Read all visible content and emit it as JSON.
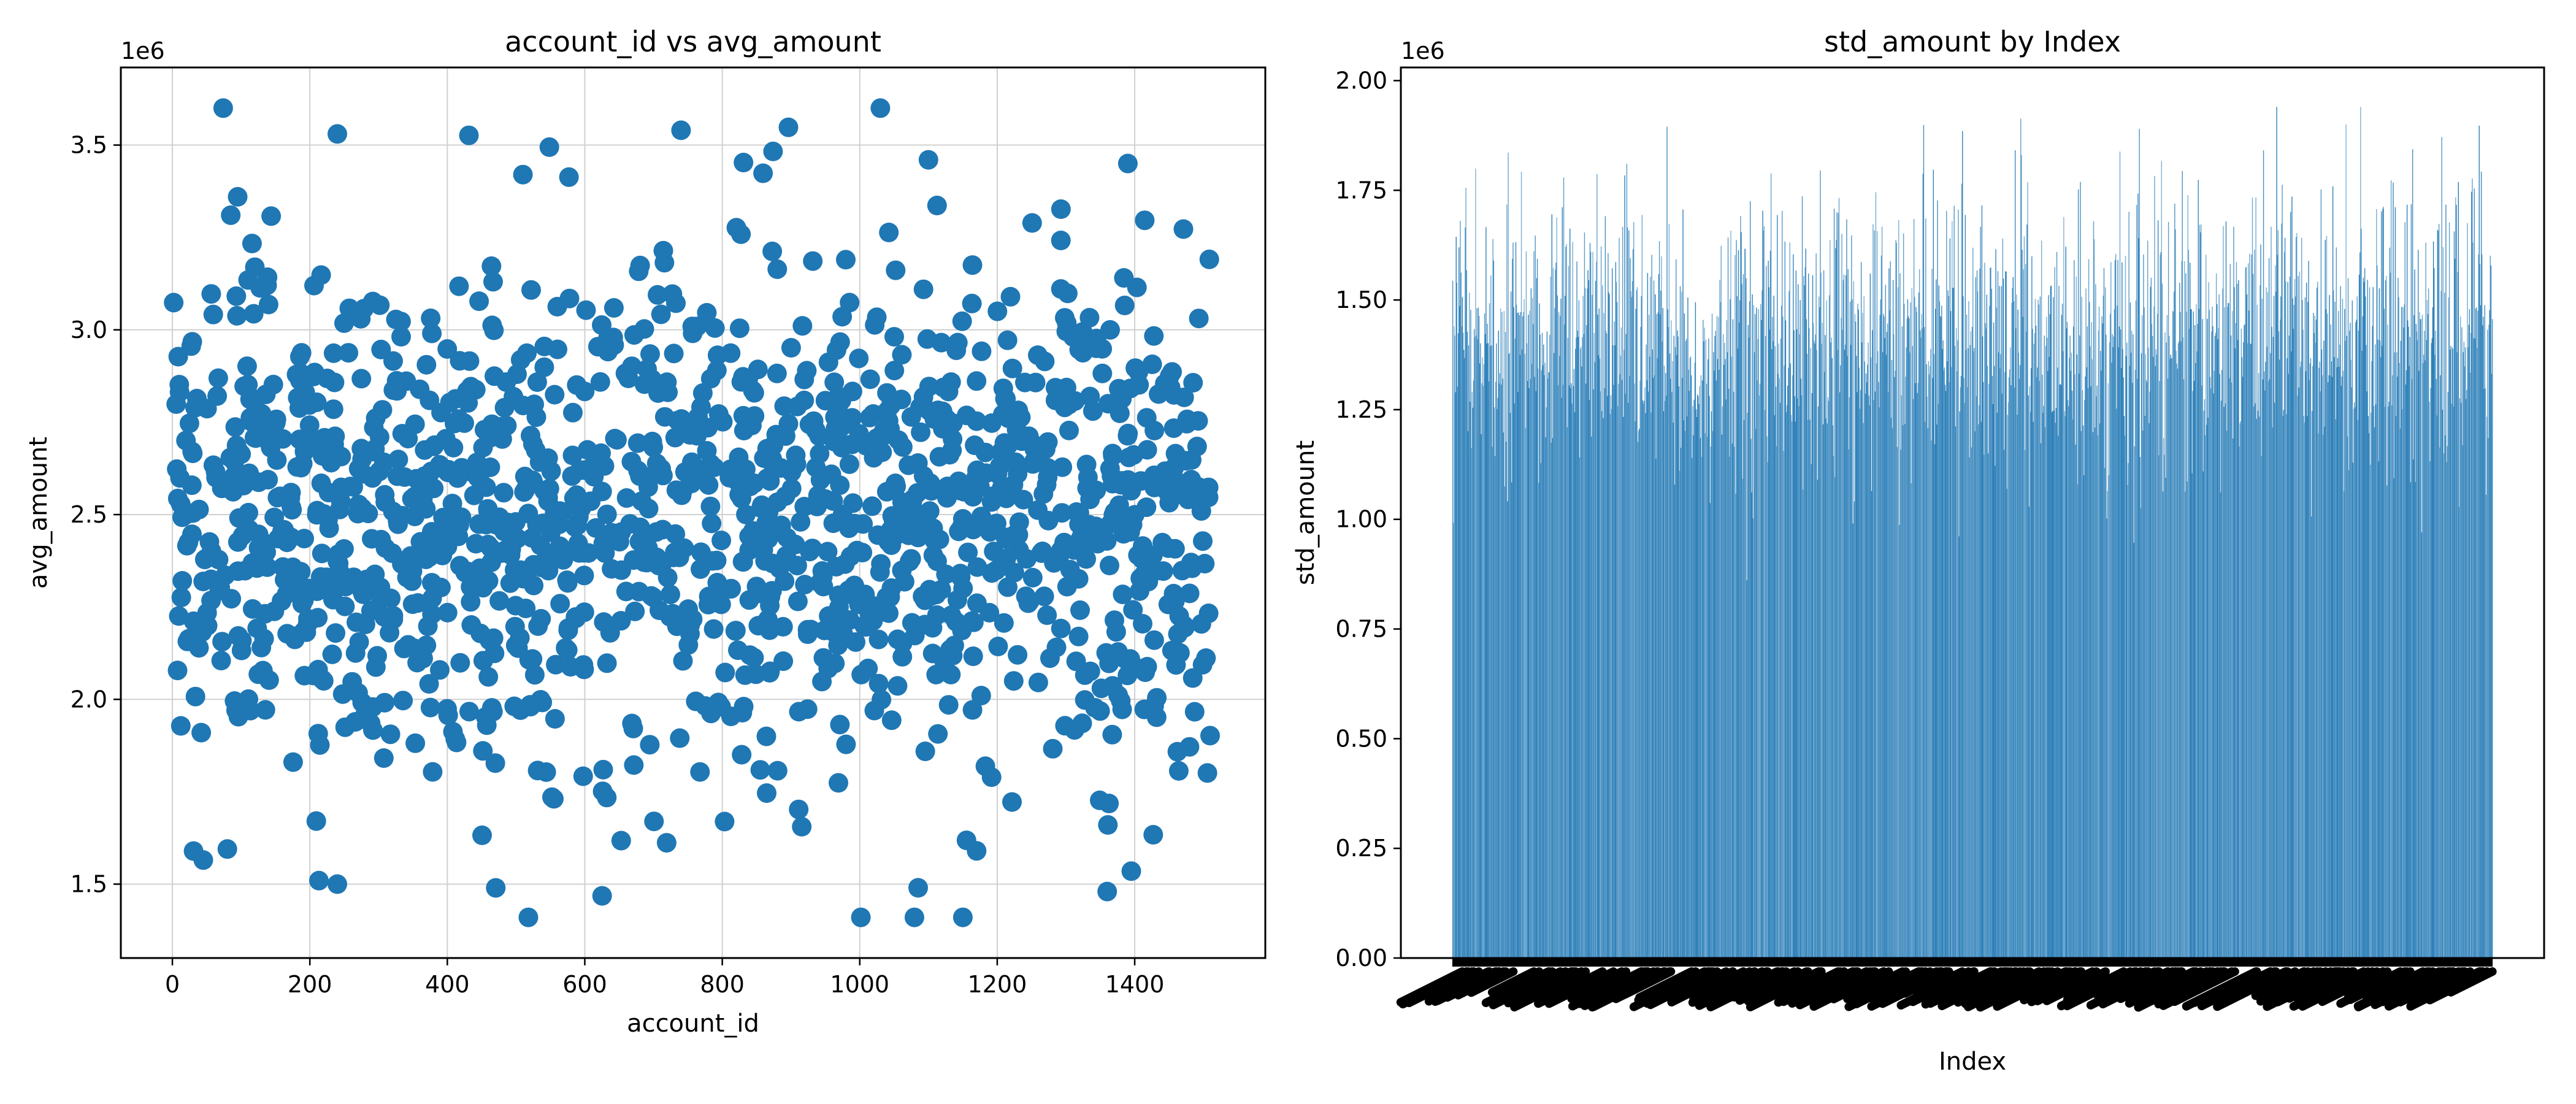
{
  "chart_data": [
    {
      "type": "scatter",
      "title": "account_id vs avg_amount",
      "xlabel": "account_id",
      "ylabel": "avg_amount",
      "y_offset_label": "1e6",
      "xlim": [
        -75,
        1590
      ],
      "ylim": [
        1300000,
        3710000
      ],
      "x_ticks": [
        0,
        200,
        400,
        600,
        800,
        1000,
        1200,
        1400
      ],
      "y_ticks": [
        1500000,
        2000000,
        2500000,
        3000000,
        3500000
      ],
      "y_tick_labels": [
        "1.5",
        "2.0",
        "2.5",
        "3.0",
        "3.5"
      ],
      "grid": true,
      "color": "#1f77b4",
      "n_points": 1500,
      "x_range": [
        0,
        1510
      ],
      "y_center": 2500000,
      "y_spread": 330000,
      "y_min": 1410000,
      "y_max": 3600000,
      "notable_points": [
        {
          "x": 240,
          "y": 3530000
        },
        {
          "x": 740,
          "y": 3540000
        },
        {
          "x": 1030,
          "y": 3600000
        },
        {
          "x": 1100,
          "y": 3460000
        },
        {
          "x": 1390,
          "y": 3450000
        },
        {
          "x": 95,
          "y": 3360000
        },
        {
          "x": 510,
          "y": 3420000
        },
        {
          "x": 240,
          "y": 1500000
        },
        {
          "x": 1150,
          "y": 1410000
        },
        {
          "x": 1360,
          "y": 1480000
        },
        {
          "x": 1085,
          "y": 1490000
        },
        {
          "x": 45,
          "y": 1565000
        },
        {
          "x": 1395,
          "y": 1535000
        },
        {
          "x": 1170,
          "y": 1590000
        },
        {
          "x": 80,
          "y": 1595000
        }
      ]
    },
    {
      "type": "bar",
      "title": "std_amount by Index",
      "xlabel": "Index",
      "ylabel": "std_amount",
      "y_offset_label": "1e6",
      "ylim": [
        0,
        2030000
      ],
      "y_ticks": [
        0,
        250000,
        500000,
        750000,
        1000000,
        1250000,
        1500000,
        1750000,
        2000000
      ],
      "y_tick_labels": [
        "0.00",
        "0.25",
        "0.50",
        "0.75",
        "1.00",
        "1.25",
        "1.50",
        "1.75",
        "2.00"
      ],
      "color": "#1f77b4",
      "n_bars": 1500,
      "value_center": 1420000,
      "value_spread": 170000,
      "value_min": 860000,
      "value_max": 1940000,
      "x_tick_labels": "overlapping (illegible)"
    }
  ]
}
